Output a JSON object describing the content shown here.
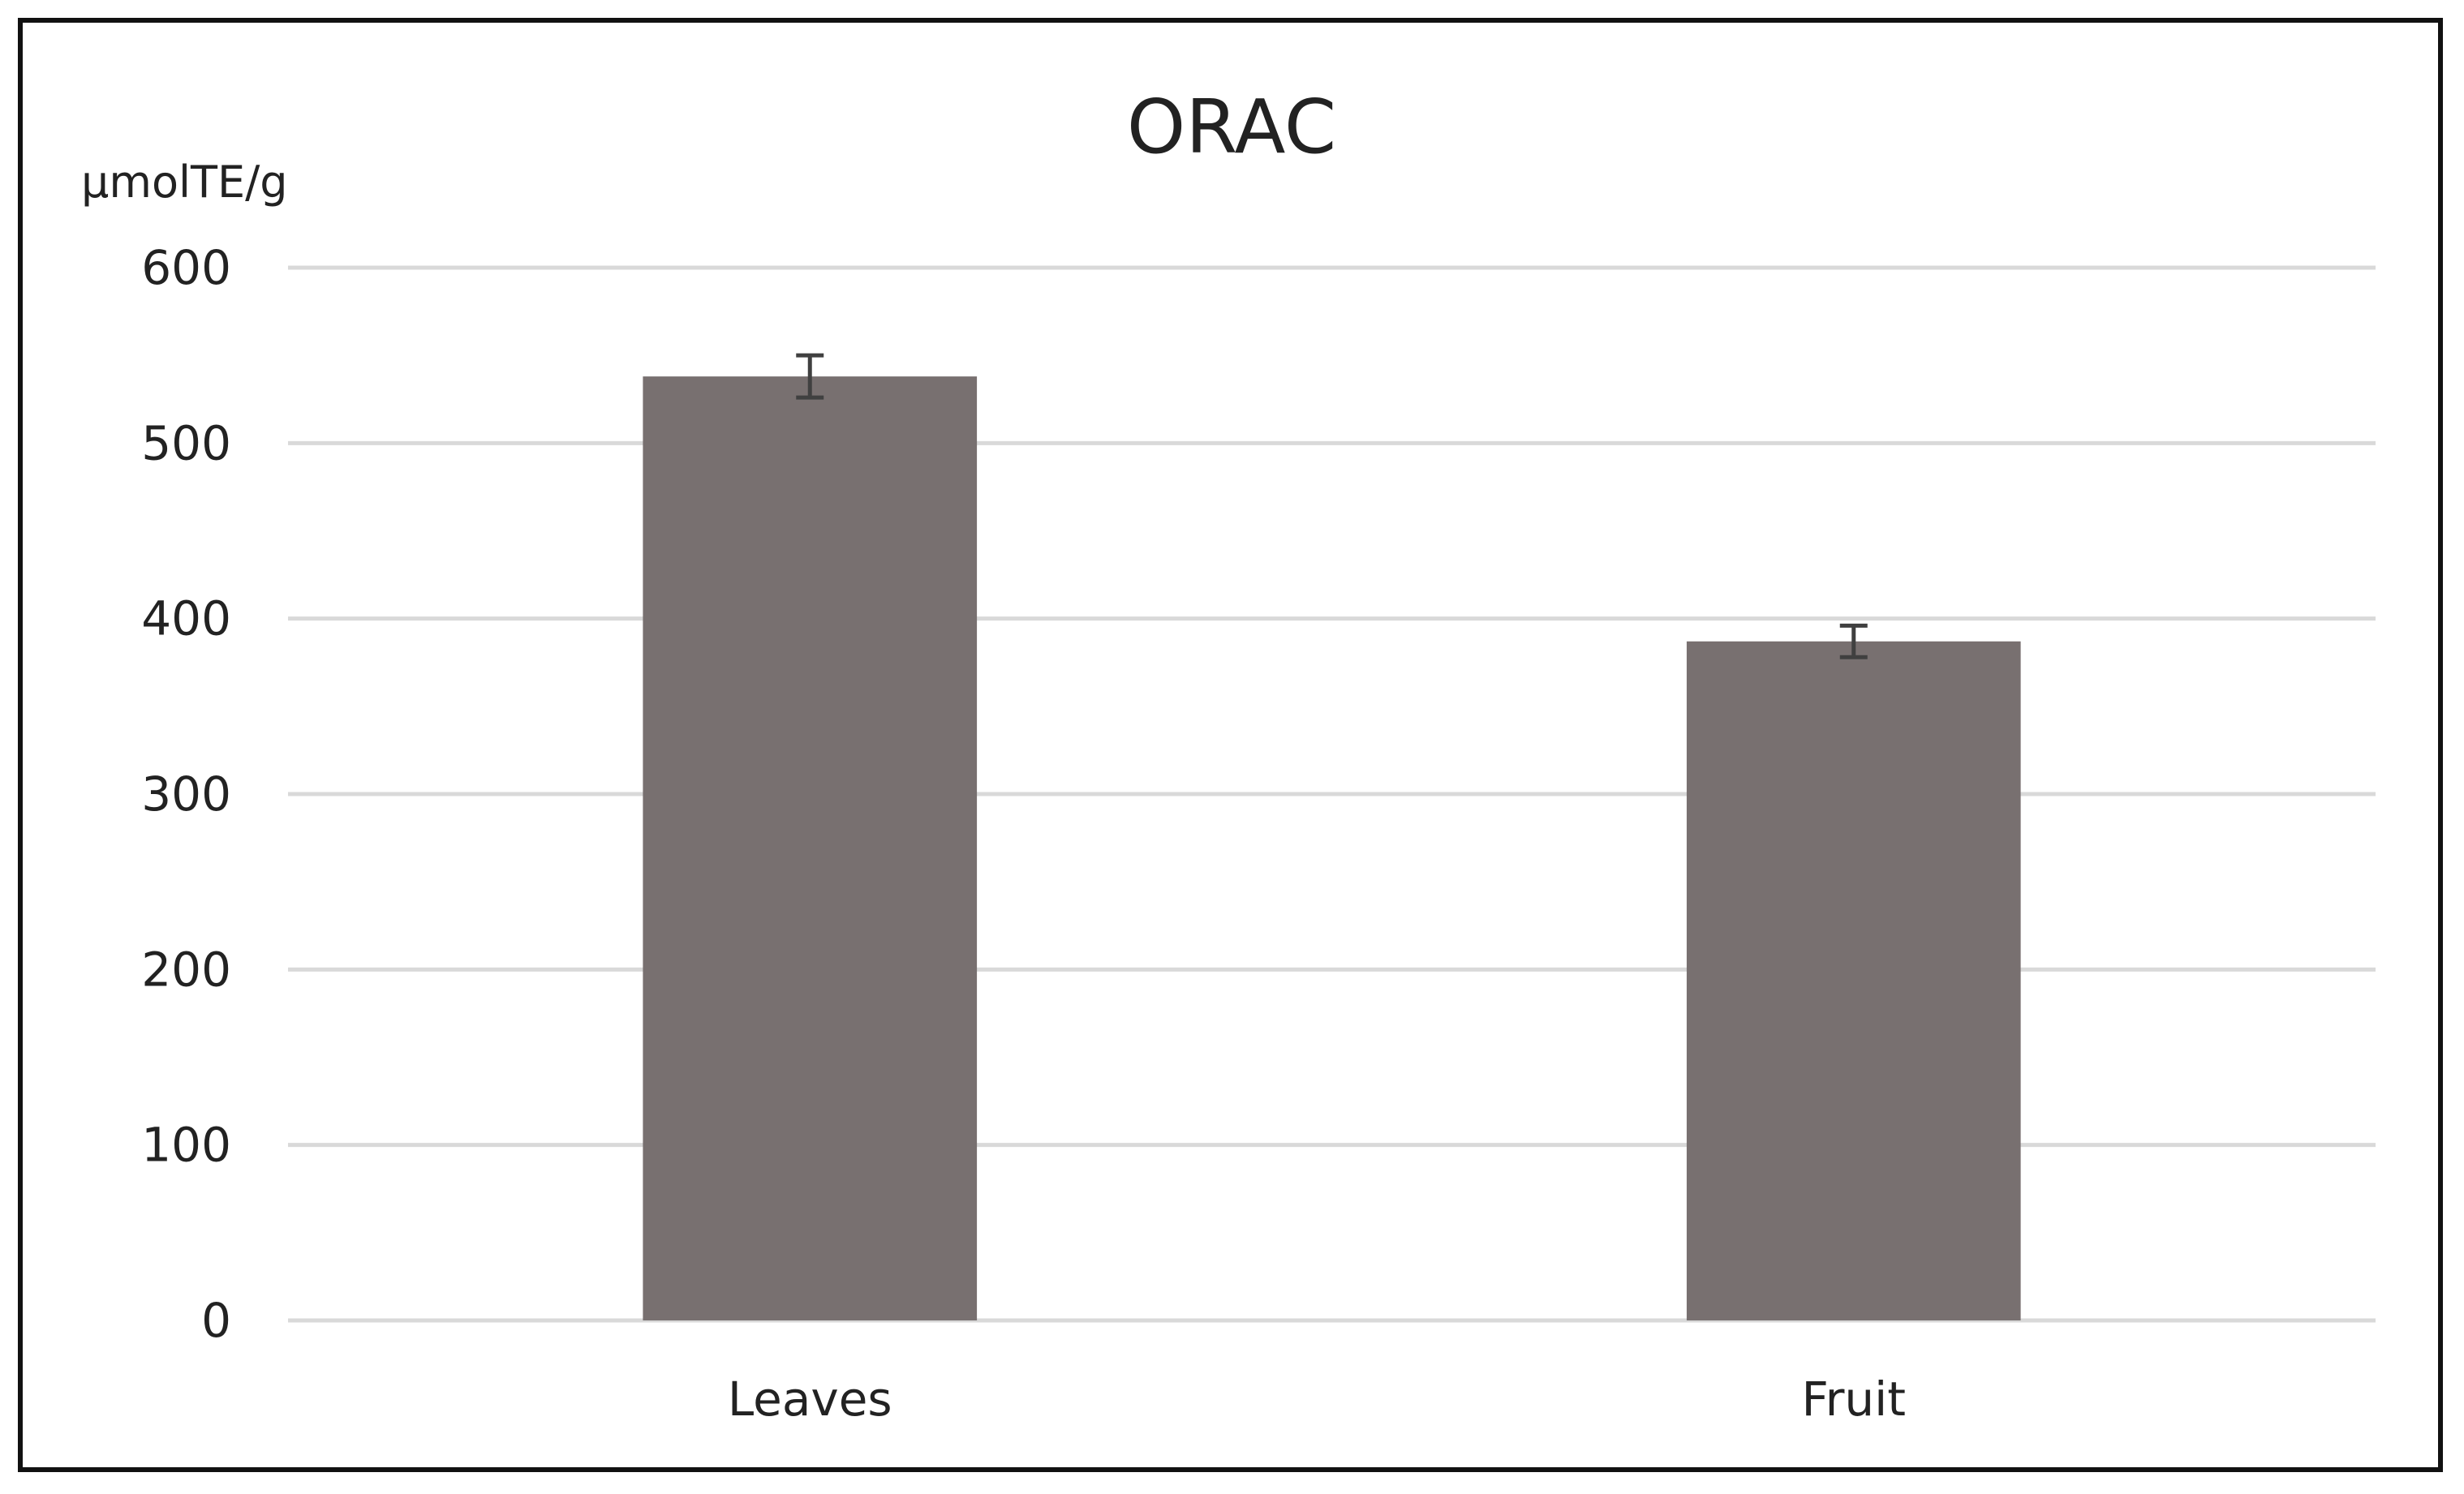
{
  "chart_data": {
    "type": "bar",
    "title": "ORAC",
    "ylabel": "µmolTE/g",
    "xlabel": "",
    "categories": [
      "Leaves",
      "Fruit"
    ],
    "values": [
      538,
      387
    ],
    "errors": [
      12,
      9
    ],
    "ylim": [
      0,
      600
    ],
    "yticks": [
      0,
      100,
      200,
      300,
      400,
      500,
      600
    ],
    "grid": true,
    "bar_color": "#787070",
    "error_color": "#404040",
    "grid_color": "#d9d9d9"
  }
}
